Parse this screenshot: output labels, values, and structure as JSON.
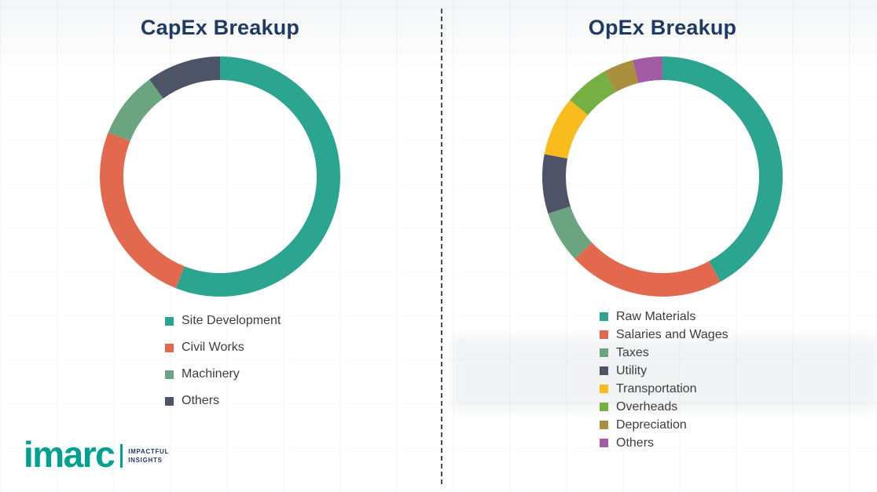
{
  "chart_data": [
    {
      "type": "pie",
      "style": "donut",
      "title": "CapEx Breakup",
      "categories": [
        "Site Development",
        "Civil Works",
        "Machinery",
        "Others"
      ],
      "values": [
        56,
        25,
        9,
        10
      ],
      "colors": [
        "#2BA58F",
        "#E2694D",
        "#6BA580",
        "#4D5468"
      ],
      "legend_position": "bottom-left",
      "grid": false
    },
    {
      "type": "pie",
      "style": "donut",
      "title": "OpEx Breakup",
      "categories": [
        "Raw Materials",
        "Salaries and Wages",
        "Taxes",
        "Utility",
        "Transportation",
        "Overheads",
        "Depreciation",
        "Others"
      ],
      "values": [
        42,
        21,
        7,
        8,
        8,
        6,
        4,
        4
      ],
      "colors": [
        "#2BA58F",
        "#E2694D",
        "#6BA580",
        "#4D5468",
        "#F8BC1C",
        "#76B043",
        "#A98F3E",
        "#A15CA3"
      ],
      "legend_position": "bottom-left",
      "grid": false
    }
  ],
  "logo": {
    "wordmark": "imarc",
    "tagline": [
      "IMPACTFUL",
      "INSIGHTS"
    ]
  },
  "accent_color": "#00A18F",
  "title_color": "#1F3B63"
}
